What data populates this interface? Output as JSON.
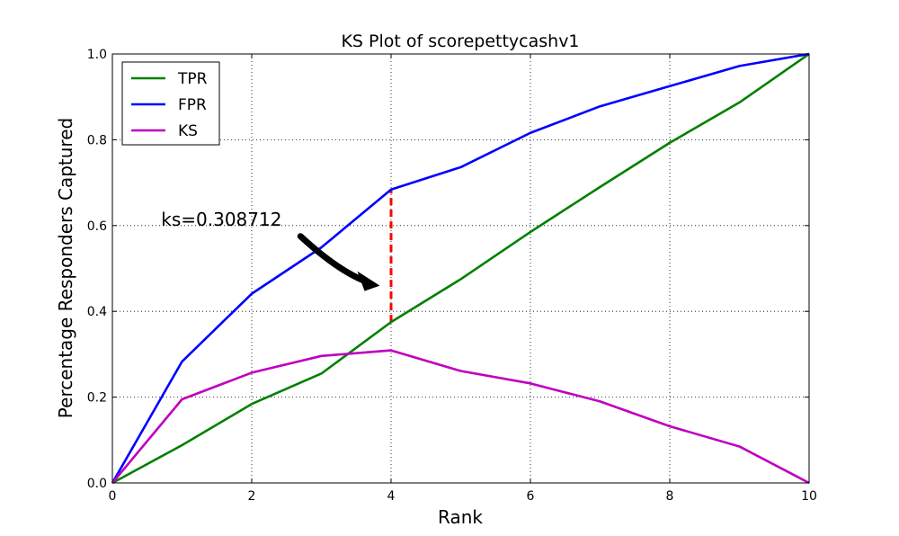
{
  "chart_data": {
    "type": "line",
    "title": "KS Plot of scorepettycashv1",
    "xlabel": "Rank",
    "ylabel": "Percentage Responders Captured",
    "xlim": [
      0,
      10
    ],
    "ylim": [
      0,
      1.0
    ],
    "xticks": [
      0,
      2,
      4,
      6,
      8,
      10
    ],
    "xtick_labels": [
      "0",
      "2",
      "4",
      "6",
      "8",
      "10"
    ],
    "yticks": [
      0,
      0.2,
      0.4,
      0.6,
      0.8,
      1.0
    ],
    "ytick_labels": [
      "0.0",
      "0.2",
      "0.4",
      "0.6",
      "0.8",
      "1.0"
    ],
    "grid": true,
    "legend_position": "top-left",
    "x": [
      0,
      1,
      2,
      3,
      4,
      5,
      6,
      7,
      8,
      9,
      10
    ],
    "series": [
      {
        "name": "TPR",
        "color": "#008000",
        "values": [
          0.0,
          0.088,
          0.184,
          0.255,
          0.375,
          0.475,
          0.585,
          0.69,
          0.793,
          0.887,
          1.0
        ]
      },
      {
        "name": "FPR",
        "color": "#0000ff",
        "values": [
          0.0,
          0.283,
          0.441,
          0.549,
          0.684,
          0.736,
          0.816,
          0.878,
          0.925,
          0.972,
          1.0
        ]
      },
      {
        "name": "KS",
        "color": "#bf00bf",
        "values": [
          0.0,
          0.195,
          0.257,
          0.296,
          0.309,
          0.261,
          0.232,
          0.19,
          0.132,
          0.085,
          0.0
        ]
      }
    ],
    "ks_line": {
      "x": 4,
      "y_from": 0.375,
      "y_to": 0.684,
      "color": "#ff0000"
    },
    "annotation": {
      "text": "ks=0.308712",
      "x": 0.7,
      "y": 0.6,
      "arrow_to_x": 3.8,
      "arrow_to_y": 0.46
    }
  }
}
